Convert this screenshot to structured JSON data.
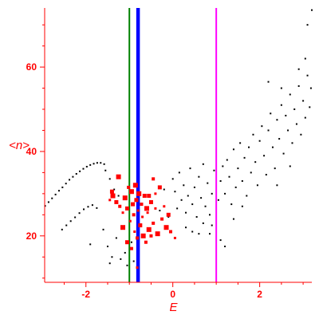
{
  "chart_data": {
    "type": "scatter",
    "title": "",
    "xlabel": "E",
    "ylabel": "<n>",
    "xlim": [
      -2.95,
      3.2
    ],
    "ylim": [
      9,
      74
    ],
    "x_ticks": [
      -2,
      0,
      2
    ],
    "y_ticks": [
      20,
      40,
      60
    ],
    "grid": false,
    "axis_color": "#ff0000",
    "vertical_lines": [
      {
        "x": -1.0,
        "color": "#008000"
      },
      {
        "x": -0.8,
        "color": "#0000ff"
      },
      {
        "x": 1.0,
        "color": "#ff00ff"
      }
    ],
    "series": [
      {
        "color": "#000000",
        "marker": "dot",
        "points": [
          [
            -2.94,
            27.1
          ],
          [
            -2.86,
            28.0
          ],
          [
            -2.78,
            28.9
          ],
          [
            -2.7,
            29.8
          ],
          [
            -2.62,
            30.7
          ],
          [
            -2.54,
            31.5
          ],
          [
            -2.46,
            32.4
          ],
          [
            -2.38,
            33.3
          ],
          [
            -2.3,
            34.0
          ],
          [
            -2.22,
            34.7
          ],
          [
            -2.14,
            35.3
          ],
          [
            -2.06,
            35.9
          ],
          [
            -1.98,
            36.4
          ],
          [
            -1.9,
            36.8
          ],
          [
            -1.82,
            37.1
          ],
          [
            -1.74,
            37.3
          ],
          [
            -1.66,
            37.3
          ],
          [
            -1.58,
            37.0
          ],
          [
            -2.55,
            21.5
          ],
          [
            -2.45,
            22.5
          ],
          [
            -2.35,
            23.5
          ],
          [
            -2.25,
            24.4
          ],
          [
            -2.15,
            25.4
          ],
          [
            -2.05,
            26.3
          ],
          [
            -1.95,
            26.9
          ],
          [
            -1.85,
            27.3
          ],
          [
            -1.75,
            26.6
          ],
          [
            -1.55,
            35.5
          ],
          [
            -1.45,
            33.5
          ],
          [
            -1.35,
            31.0
          ],
          [
            -1.25,
            29.5
          ],
          [
            -1.9,
            18.0
          ],
          [
            -1.6,
            21.5
          ],
          [
            -1.5,
            17.5
          ],
          [
            -1.45,
            13.5
          ],
          [
            -1.4,
            15.0
          ],
          [
            -1.3,
            19.5
          ],
          [
            -1.2,
            14.5
          ],
          [
            -1.1,
            16.0
          ],
          [
            -1.05,
            13.0
          ],
          [
            -0.95,
            18.5
          ],
          [
            -0.9,
            14.0
          ],
          [
            -0.3,
            26.0
          ],
          [
            -0.2,
            31.0
          ],
          [
            -0.1,
            24.5
          ],
          [
            0.0,
            33.5
          ],
          [
            0.05,
            30.5
          ],
          [
            0.1,
            26.5
          ],
          [
            0.15,
            35.0
          ],
          [
            0.2,
            28.5
          ],
          [
            0.25,
            32.0
          ],
          [
            0.3,
            25.5
          ],
          [
            0.35,
            29.5
          ],
          [
            0.4,
            36.0
          ],
          [
            0.45,
            27.5
          ],
          [
            0.5,
            31.5
          ],
          [
            0.55,
            24.5
          ],
          [
            0.6,
            34.0
          ],
          [
            0.65,
            29.0
          ],
          [
            0.7,
            37.0
          ],
          [
            0.75,
            27.0
          ],
          [
            0.8,
            32.5
          ],
          [
            0.85,
            25.0
          ],
          [
            0.9,
            30.0
          ],
          [
            0.95,
            35.5
          ],
          [
            0.3,
            22.0
          ],
          [
            0.45,
            21.0
          ],
          [
            0.6,
            20.5
          ],
          [
            0.7,
            23.0
          ],
          [
            0.85,
            20.5
          ],
          [
            0.9,
            22.5
          ],
          [
            1.05,
            28.5
          ],
          [
            1.1,
            33.0
          ],
          [
            1.15,
            36.5
          ],
          [
            1.2,
            30.0
          ],
          [
            1.25,
            38.0
          ],
          [
            1.3,
            34.0
          ],
          [
            1.35,
            27.5
          ],
          [
            1.4,
            40.5
          ],
          [
            1.45,
            31.5
          ],
          [
            1.5,
            36.0
          ],
          [
            1.55,
            42.0
          ],
          [
            1.6,
            33.0
          ],
          [
            1.65,
            38.5
          ],
          [
            1.7,
            29.5
          ],
          [
            1.75,
            41.0
          ],
          [
            1.8,
            35.0
          ],
          [
            1.85,
            44.0
          ],
          [
            1.9,
            37.5
          ],
          [
            1.95,
            32.0
          ],
          [
            2.0,
            42.5
          ],
          [
            2.05,
            46.0
          ],
          [
            2.1,
            39.0
          ],
          [
            2.15,
            34.5
          ],
          [
            2.2,
            45.0
          ],
          [
            2.25,
            49.0
          ],
          [
            2.3,
            41.0
          ],
          [
            2.35,
            36.0
          ],
          [
            2.4,
            47.5
          ],
          [
            2.45,
            43.0
          ],
          [
            2.5,
            51.0
          ],
          [
            2.55,
            39.5
          ],
          [
            2.6,
            48.5
          ],
          [
            2.65,
            45.0
          ],
          [
            2.7,
            53.5
          ],
          [
            2.75,
            42.0
          ],
          [
            2.8,
            50.0
          ],
          [
            2.85,
            46.5
          ],
          [
            2.9,
            55.5
          ],
          [
            2.95,
            44.0
          ],
          [
            3.0,
            52.0
          ],
          [
            3.05,
            48.0
          ],
          [
            3.1,
            58.0
          ],
          [
            3.15,
            50.5
          ],
          [
            3.18,
            55.0
          ],
          [
            1.1,
            19.0
          ],
          [
            1.2,
            17.5
          ],
          [
            1.4,
            24.0
          ],
          [
            1.6,
            27.0
          ],
          [
            2.4,
            32.0
          ],
          [
            2.7,
            36.5
          ],
          [
            2.9,
            59.5
          ],
          [
            3.05,
            62.0
          ],
          [
            3.1,
            70.0
          ],
          [
            3.2,
            73.5
          ],
          [
            2.2,
            56.5
          ],
          [
            2.5,
            55.0
          ]
        ]
      },
      {
        "color": "#ff0000",
        "marker": "square",
        "points": [
          [
            -1.45,
            28.5
          ],
          [
            -1.38,
            29.5
          ],
          [
            -1.3,
            28.0
          ],
          [
            -1.22,
            27.0
          ],
          [
            -1.15,
            25.5
          ],
          [
            -1.1,
            29.0
          ],
          [
            -1.05,
            26.5
          ],
          [
            -1.02,
            31.5
          ],
          [
            -0.98,
            23.5
          ],
          [
            -0.95,
            30.5
          ],
          [
            -0.92,
            27.5
          ],
          [
            -0.9,
            25.0
          ],
          [
            -0.88,
            21.0
          ],
          [
            -0.86,
            32.0
          ],
          [
            -0.84,
            28.5
          ],
          [
            -0.82,
            19.5
          ],
          [
            -0.8,
            26.0
          ],
          [
            -0.78,
            30.0
          ],
          [
            -0.75,
            22.5
          ],
          [
            -0.72,
            27.5
          ],
          [
            -0.7,
            24.5
          ],
          [
            -0.68,
            20.0
          ],
          [
            -0.65,
            29.5
          ],
          [
            -0.62,
            18.5
          ],
          [
            -0.58,
            25.5
          ],
          [
            -0.55,
            21.5
          ],
          [
            -0.5,
            28.0
          ],
          [
            -0.45,
            23.0
          ],
          [
            -0.4,
            26.5
          ],
          [
            -0.35,
            20.5
          ],
          [
            -0.3,
            31.5
          ],
          [
            -0.25,
            24.0
          ],
          [
            -0.2,
            27.0
          ],
          [
            -0.15,
            22.0
          ],
          [
            -0.1,
            25.0
          ],
          [
            -0.05,
            21.0
          ],
          [
            0.05,
            19.5
          ],
          [
            -1.25,
            34.0
          ],
          [
            -1.4,
            30.5
          ],
          [
            -0.45,
            33.5
          ],
          [
            -0.4,
            30.0
          ],
          [
            -1.15,
            22.0
          ],
          [
            -1.05,
            18.5
          ],
          [
            -0.95,
            17.0
          ],
          [
            -0.82,
            12.5
          ],
          [
            -0.6,
            26.5
          ],
          [
            -0.55,
            29.5
          ],
          [
            -0.5,
            20.0
          ]
        ]
      }
    ]
  }
}
